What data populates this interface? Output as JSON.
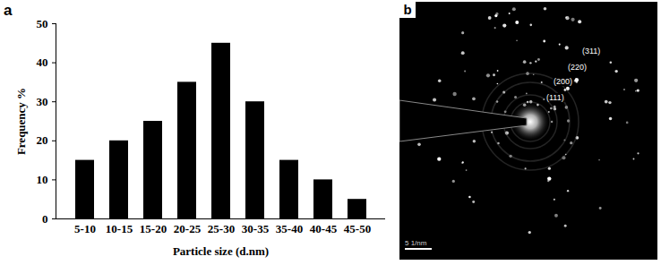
{
  "chart_data": [
    {
      "panel_label": "a",
      "type": "bar",
      "categories": [
        "5-10",
        "10-15",
        "15-20",
        "20-25",
        "25-30",
        "30-35",
        "35-40",
        "40-45",
        "45-50"
      ],
      "values": [
        15,
        20,
        25,
        35,
        45,
        30,
        15,
        10,
        5
      ],
      "color": "#000000",
      "xlabel": "Particle size (d.nm)",
      "ylabel": "Frequency %",
      "ylim": [
        0,
        50
      ],
      "yticks": [
        0,
        10,
        20,
        30,
        40,
        50
      ],
      "grid": false
    },
    {
      "panel_label": "b",
      "type": "image",
      "ring_labels": [
        "(111)",
        "(200)",
        "(220)",
        "(311)"
      ],
      "scale_bar": "5 1/nm"
    }
  ]
}
